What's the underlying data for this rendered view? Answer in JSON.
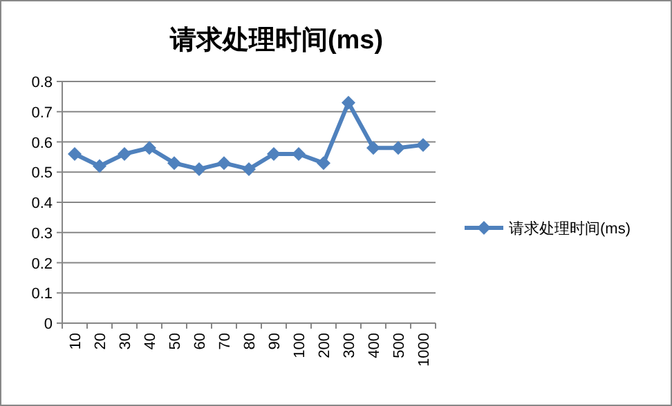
{
  "chart_data": {
    "type": "line",
    "title": "请求处理时间(ms)",
    "categories": [
      "10",
      "20",
      "30",
      "40",
      "50",
      "60",
      "70",
      "80",
      "90",
      "100",
      "200",
      "300",
      "400",
      "500",
      "1000"
    ],
    "series": [
      {
        "name": "请求处理时间(ms)",
        "color": "#4f81bd",
        "values": [
          0.56,
          0.52,
          0.56,
          0.58,
          0.53,
          0.51,
          0.53,
          0.51,
          0.56,
          0.56,
          0.53,
          0.73,
          0.58,
          0.58,
          0.59
        ]
      }
    ],
    "ylim": [
      0,
      0.8
    ],
    "yticks": [
      0,
      0.1,
      0.2,
      0.3,
      0.4,
      0.5,
      0.6,
      0.7,
      0.8
    ],
    "grid": "y",
    "legend": "right",
    "marker": "diamond",
    "line_style": "solid"
  }
}
